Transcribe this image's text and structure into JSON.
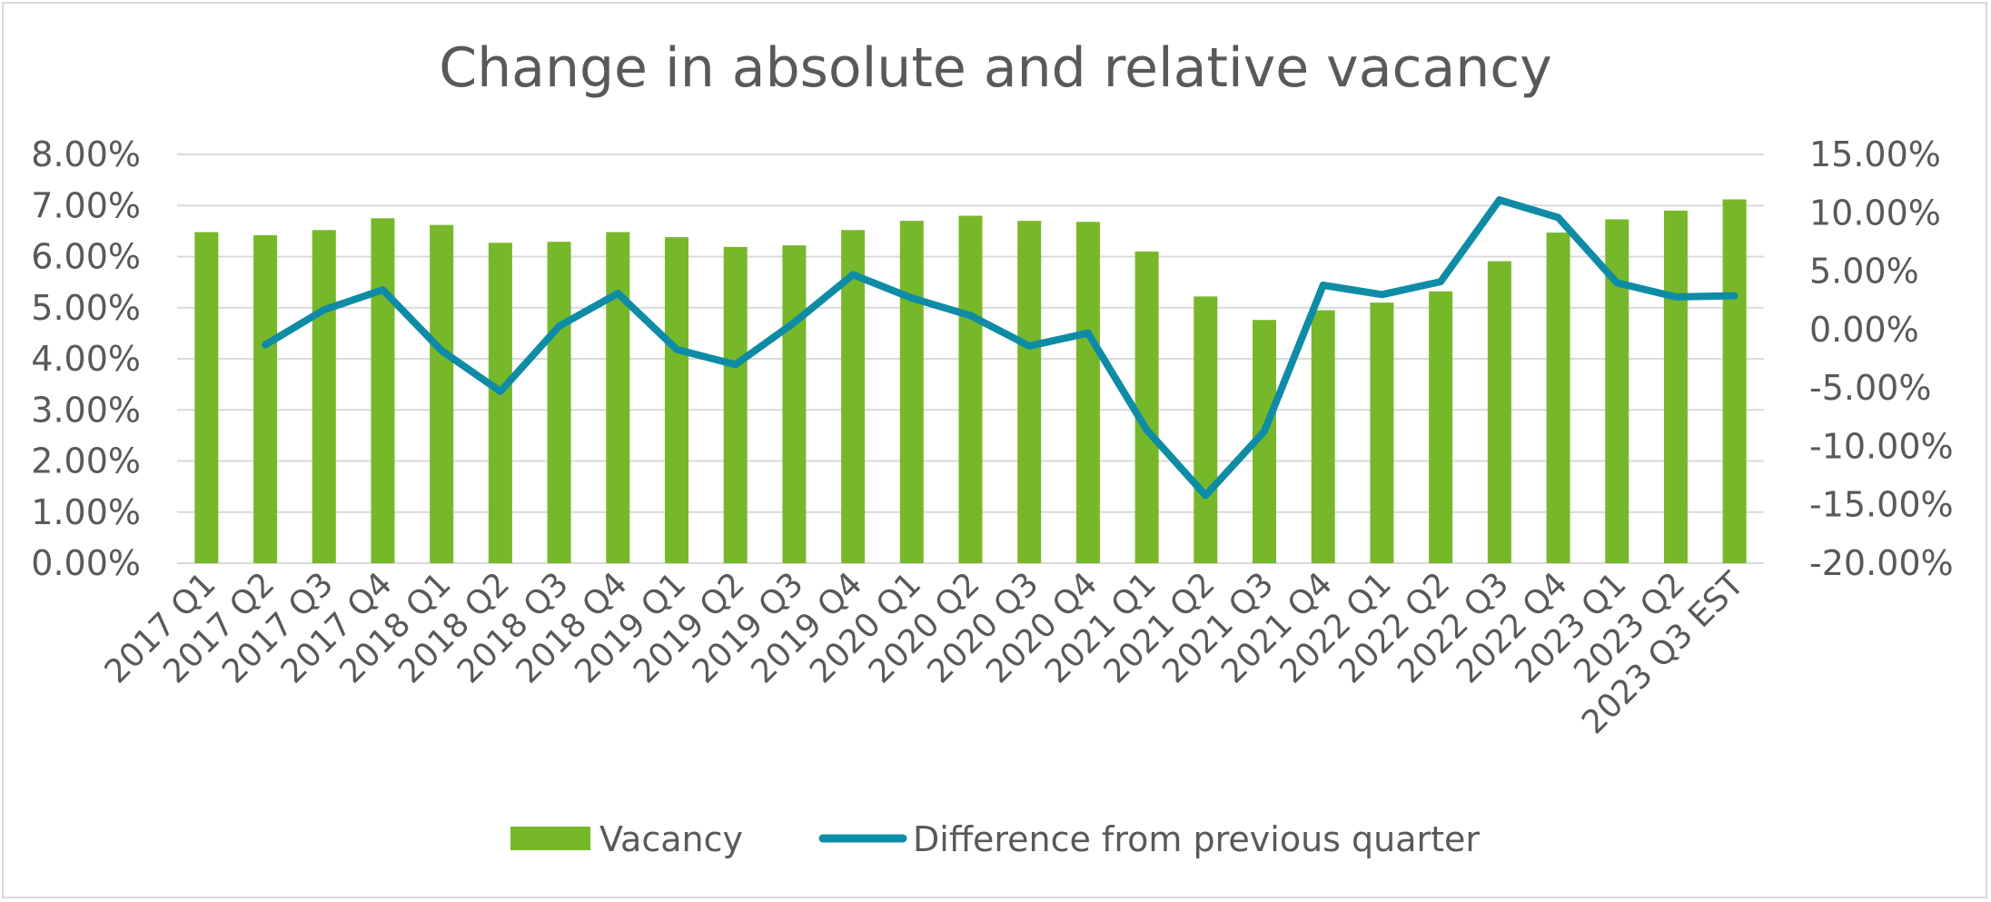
{
  "chart_data": {
    "type": "bar",
    "title": "Change in absolute and relative vacancy",
    "categories": [
      "2017 Q1",
      "2017 Q2",
      "2017 Q3",
      "2017 Q4",
      "2018 Q1",
      "2018 Q2",
      "2018 Q3",
      "2018 Q4",
      "2019 Q1",
      "2019 Q2",
      "2019 Q3",
      "2019 Q4",
      "2020 Q1",
      "2020 Q2",
      "2020 Q3",
      "2020 Q4",
      "2021 Q1",
      "2021 Q2",
      "2021 Q3",
      "2021 Q4",
      "2022 Q1",
      "2022 Q2",
      "2022 Q3",
      "2022 Q4",
      "2023 Q1",
      "2023 Q2",
      "2023 Q3 EST"
    ],
    "series": [
      {
        "name": "Vacancy",
        "type": "bar",
        "axis": "left",
        "color": "#77b82a",
        "values": [
          6.48,
          6.42,
          6.52,
          6.75,
          6.62,
          6.27,
          6.29,
          6.48,
          6.38,
          6.19,
          6.22,
          6.52,
          6.7,
          6.8,
          6.7,
          6.68,
          6.1,
          5.22,
          4.76,
          4.95,
          5.1,
          5.32,
          5.91,
          6.47,
          6.73,
          6.9,
          7.12
        ]
      },
      {
        "name": "Difference from previous quarter",
        "type": "line",
        "axis": "right",
        "color": "#0e8ca6",
        "values": [
          null,
          -1.3,
          1.7,
          3.4,
          -1.8,
          -5.3,
          0.3,
          3.1,
          -1.7,
          -3.0,
          0.6,
          4.7,
          2.7,
          1.2,
          -1.4,
          -0.3,
          -8.6,
          -14.2,
          -8.7,
          3.8,
          3.0,
          4.1,
          11.1,
          9.6,
          4.0,
          2.8,
          2.9
        ]
      }
    ],
    "y_left": {
      "min": 0,
      "max": 8,
      "step": 1,
      "tick_labels": [
        "0.00%",
        "1.00%",
        "2.00%",
        "3.00%",
        "4.00%",
        "5.00%",
        "6.00%",
        "7.00%",
        "8.00%"
      ]
    },
    "y_right": {
      "min": -20,
      "max": 15,
      "step": 5,
      "tick_labels": [
        "-20.00%",
        "-15.00%",
        "-10.00%",
        "-5.00%",
        "0.00%",
        "5.00%",
        "10.00%",
        "15.00%"
      ]
    },
    "grid": true,
    "legend_position": "bottom"
  }
}
